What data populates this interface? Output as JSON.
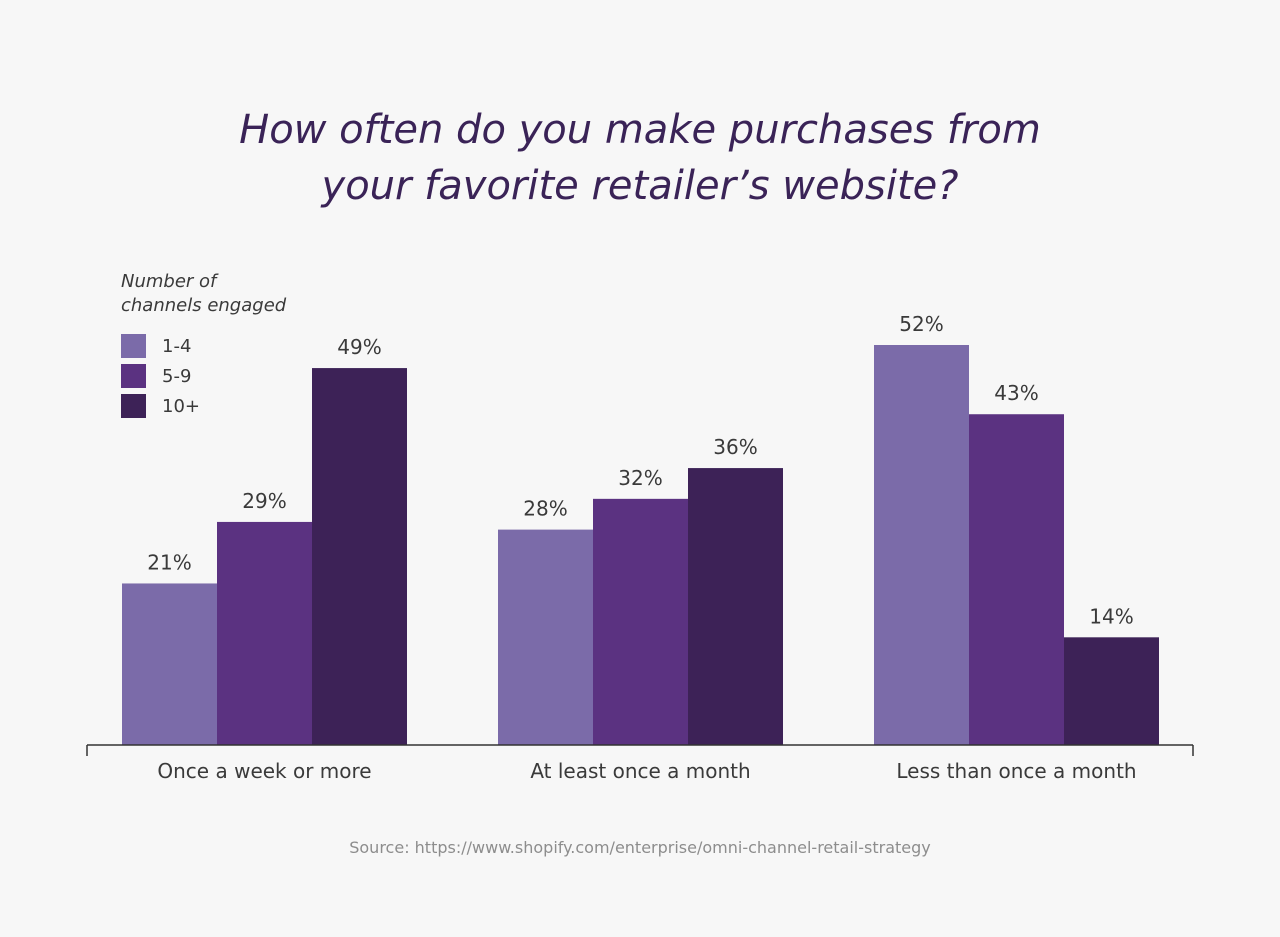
{
  "chart_data": {
    "type": "bar",
    "title": [
      "How often do you make purchases from",
      "your favorite retailer’s website?"
    ],
    "legend_title": [
      "Number of",
      "channels engaged"
    ],
    "categories": [
      "Once a week or more",
      "At least once a month",
      "Less than once a month"
    ],
    "series": [
      {
        "name": "1-4",
        "values": [
          21,
          28,
          52
        ],
        "color": "#7b6ba9"
      },
      {
        "name": "5-9",
        "values": [
          29,
          32,
          43
        ],
        "color": "#5b3281"
      },
      {
        "name": "10+",
        "values": [
          49,
          36,
          14
        ],
        "color": "#3d2257"
      }
    ],
    "value_suffix": "%",
    "ylim": [
      0,
      52
    ],
    "grid": false,
    "legend_position": "top-left",
    "source": "Source: https://www.shopify.com/enterprise/omni-channel-retail-strategy"
  }
}
